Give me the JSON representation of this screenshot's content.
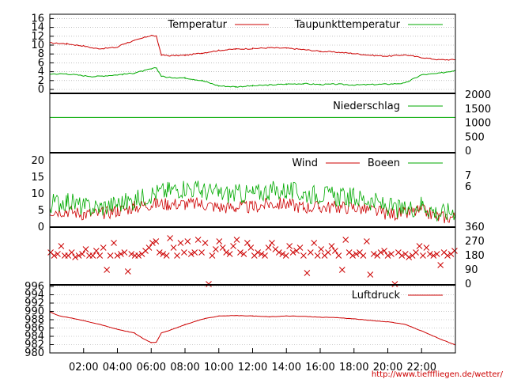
{
  "source_text": "http://www.tiefffliegen.de/wetter/",
  "colors": {
    "red": "#cc0000",
    "green": "#00aa00",
    "grid": "#999999",
    "frame": "#000000"
  },
  "x_axis": {
    "range_hours": [
      0,
      24
    ],
    "tick_hours": [
      2,
      4,
      6,
      8,
      10,
      12,
      14,
      16,
      18,
      20,
      22
    ],
    "tick_labels": [
      "02:00",
      "04:00",
      "06:00",
      "08:00",
      "10:00",
      "12:00",
      "14:00",
      "16:00",
      "18:00",
      "20:00",
      "22:00"
    ]
  },
  "chart_data": [
    {
      "type": "line",
      "panel": "temperature",
      "ylim": [
        -1,
        17
      ],
      "yticks": [
        0,
        2,
        4,
        6,
        8,
        10,
        12,
        14,
        16
      ],
      "ytick_labels": [
        "0",
        "2",
        "4",
        "6",
        "8",
        "10",
        "12",
        "14",
        "16"
      ],
      "x": [
        0,
        1,
        2,
        2.6,
        3,
        4,
        4.3,
        5,
        6,
        6.3,
        6.6,
        7,
        8,
        9,
        10,
        11,
        12,
        13,
        14,
        15,
        16,
        17,
        18,
        19,
        20,
        21,
        22,
        23,
        24
      ],
      "series": [
        {
          "name": "Temperatur",
          "color": "#cc0000",
          "values": [
            10.5,
            10.3,
            9.8,
            9.3,
            9.2,
            9.5,
            10.2,
            11.0,
            12.2,
            12.0,
            7.8,
            7.6,
            7.7,
            8.2,
            8.8,
            9.1,
            9.2,
            9.4,
            9.3,
            9.0,
            8.6,
            8.4,
            8.1,
            7.7,
            7.5,
            7.8,
            7.2,
            6.7,
            6.7
          ]
        },
        {
          "name": "Taupunkttemperatur",
          "color": "#00aa00",
          "values": [
            3.5,
            3.5,
            3.1,
            2.9,
            3.0,
            3.3,
            3.4,
            3.7,
            4.6,
            4.9,
            3.0,
            2.7,
            2.6,
            2.0,
            0.8,
            0.6,
            0.8,
            1.0,
            1.2,
            1.3,
            1.1,
            1.2,
            1.0,
            1.1,
            1.2,
            1.4,
            3.3,
            3.6,
            4.3
          ]
        }
      ]
    },
    {
      "type": "line",
      "panel": "precipitation",
      "ylim": [
        0,
        2000
      ],
      "yticks": [
        0,
        500,
        1000,
        1500,
        2000
      ],
      "ytick_labels": [
        "0",
        "500",
        "1000",
        "1500",
        "2000"
      ],
      "x": [
        0,
        24
      ],
      "series": [
        {
          "name": "Niederschlag",
          "color": "#00aa00",
          "values": [
            1200,
            1200
          ]
        }
      ]
    },
    {
      "type": "line",
      "panel": "wind",
      "ylim": [
        0,
        22
      ],
      "yticks": [
        0,
        5,
        10,
        15,
        20
      ],
      "ytick_labels": [
        "0",
        "5",
        "10",
        "15",
        "20"
      ],
      "right_tick_labels": [
        "7",
        "6"
      ],
      "x": [
        0,
        1,
        2,
        3,
        4,
        5,
        6,
        7,
        8,
        9,
        10,
        11,
        12,
        13,
        14,
        15,
        16,
        17,
        18,
        19,
        20,
        21,
        22,
        23,
        24
      ],
      "series": [
        {
          "name": "Wind",
          "color": "#cc0000",
          "values": [
            5,
            5,
            4,
            4,
            5,
            6,
            7,
            7,
            7,
            7,
            6,
            6,
            6,
            7,
            7,
            6,
            6,
            6,
            6,
            5,
            4,
            4,
            5,
            3,
            3
          ]
        },
        {
          "name": "Boeen",
          "color": "#00aa00",
          "values": [
            7,
            8,
            6,
            6,
            7,
            8,
            10,
            11,
            12,
            11,
            10,
            10,
            10,
            11,
            11,
            10,
            10,
            9,
            9,
            8,
            6,
            5,
            7,
            4,
            5
          ]
        }
      ]
    },
    {
      "type": "scatter",
      "panel": "wind_direction",
      "ylim": [
        0,
        360
      ],
      "yticks": [
        0,
        90,
        180,
        270,
        360
      ],
      "ytick_labels": [
        "0",
        "90",
        "180",
        "270",
        "360"
      ],
      "marker": "x",
      "color": "#cc0000",
      "values": [
        200,
        180,
        190,
        240,
        180,
        180,
        200,
        170,
        180,
        190,
        220,
        180,
        180,
        210,
        180,
        230,
        90,
        180,
        260,
        180,
        190,
        200,
        80,
        190,
        180,
        180,
        190,
        210,
        230,
        260,
        270,
        200,
        190,
        180,
        290,
        230,
        180,
        260,
        200,
        270,
        190,
        200,
        280,
        200,
        260,
        0,
        180,
        220,
        270,
        230,
        200,
        190,
        240,
        280,
        200,
        190,
        260,
        230,
        180,
        200,
        190,
        180,
        230,
        260,
        220,
        200,
        190,
        180,
        240,
        200,
        210,
        230,
        180,
        70,
        200,
        260,
        180,
        220,
        180,
        200,
        240,
        210,
        180,
        90,
        280,
        200,
        180,
        190,
        200,
        180,
        270,
        60,
        190,
        180,
        200,
        210,
        180,
        190,
        0,
        200,
        180,
        190,
        170,
        180,
        200,
        240,
        180,
        230,
        190,
        180,
        190,
        120,
        200,
        180,
        190,
        210
      ]
    },
    {
      "type": "line",
      "panel": "pressure",
      "ylim": [
        980,
        996
      ],
      "yticks": [
        980,
        982,
        984,
        986,
        988,
        990,
        992,
        994,
        996
      ],
      "ytick_labels": [
        "980",
        "982",
        "984",
        "986",
        "988",
        "990",
        "992",
        "994",
        "996"
      ],
      "x": [
        0,
        0.5,
        1,
        2,
        3,
        4,
        5,
        5.5,
        6,
        6.3,
        6.6,
        7,
        8,
        9,
        10,
        11,
        12,
        13,
        14,
        15,
        16,
        17,
        18,
        19,
        20,
        21,
        22,
        23,
        24
      ],
      "series": [
        {
          "name": "Luftdruck",
          "color": "#cc0000",
          "values": [
            989.9,
            989.0,
            988.6,
            987.8,
            986.8,
            985.7,
            984.8,
            983.5,
            982.5,
            982.6,
            984.8,
            985.3,
            986.8,
            988.1,
            988.9,
            989.0,
            988.9,
            988.7,
            988.9,
            988.8,
            988.6,
            988.5,
            988.2,
            987.8,
            987.5,
            986.9,
            985.3,
            983.5,
            981.9
          ]
        }
      ]
    }
  ]
}
